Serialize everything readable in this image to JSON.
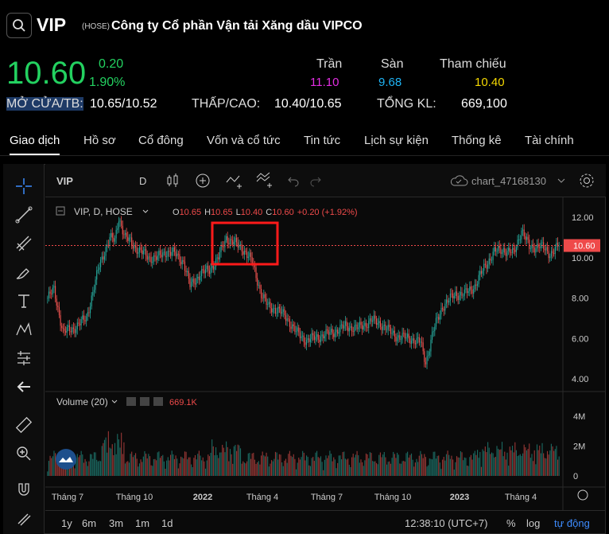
{
  "header": {
    "ticker": "VIP",
    "exchange": "(HOSE)",
    "company": "Công ty Cổ phần Vận tải Xăng dầu VIPCO",
    "price": "10.60",
    "change": "0.20",
    "change_pct": "1.90%",
    "ceiling_label": "Trần",
    "ceiling": "11.10",
    "floor_label": "Sàn",
    "floor": "9.68",
    "ref_label": "Tham chiếu",
    "ref": "10.40",
    "open_avg_label": "MỞ CỬA/TB:",
    "open_avg": "10.65/10.52",
    "low_high_label": "THẤP/CAO:",
    "low_high": "10.40/10.65",
    "volume_label": "TỔNG KL:",
    "volume": "669,100",
    "colors": {
      "up": "#23d160",
      "ceiling": "#e22ee2",
      "floor": "#1fb4f5",
      "ref": "#f5d800"
    }
  },
  "tabs": [
    {
      "label": "Giao dịch"
    },
    {
      "label": "Hồ sơ"
    },
    {
      "label": "Cổ đông"
    },
    {
      "label": "Vốn và cổ tức"
    },
    {
      "label": "Tin tức"
    },
    {
      "label": "Lịch sự kiện"
    },
    {
      "label": "Thống kê"
    },
    {
      "label": "Tài chính"
    }
  ],
  "chart_toolbar": {
    "symbol": "VIP",
    "interval": "D",
    "chart_name": "chart_47168130"
  },
  "legend": {
    "title": "VIP, D, HOSE",
    "o_label": "O",
    "o": "10.65",
    "h_label": "H",
    "h": "10.65",
    "l_label": "L",
    "l": "10.40",
    "c_label": "C",
    "c": "10.60",
    "change": "+0.20 (+1.92%)",
    "volume_title": "Volume (20)",
    "volume_value": "669.1K",
    "last_price_tag": "10.60"
  },
  "chart_data": {
    "type": "candlestick",
    "price_ticks": [
      "12.00",
      "10.00",
      "8.00",
      "6.00",
      "4.00"
    ],
    "price_tick_values": [
      12,
      10,
      8,
      6,
      4
    ],
    "volume_ticks": [
      "4M",
      "2M",
      "0"
    ],
    "volume_tick_values": [
      4,
      2,
      0
    ],
    "x_labels": [
      "Tháng 7",
      "Tháng 10",
      "2022",
      "Tháng 4",
      "Tháng 7",
      "Tháng 10",
      "2023",
      "Tháng 4"
    ],
    "last_price": 10.6,
    "price_path_keypoints": [
      [
        0,
        8.0
      ],
      [
        5,
        8.4
      ],
      [
        12,
        6.3
      ],
      [
        20,
        6.5
      ],
      [
        30,
        7.0
      ],
      [
        40,
        9.6
      ],
      [
        48,
        11.0
      ],
      [
        52,
        10.8
      ],
      [
        55,
        12.0
      ],
      [
        60,
        11.0
      ],
      [
        70,
        10.4
      ],
      [
        78,
        10.0
      ],
      [
        85,
        10.0
      ],
      [
        92,
        10.3
      ],
      [
        98,
        10.2
      ],
      [
        105,
        9.8
      ],
      [
        110,
        8.6
      ],
      [
        118,
        9.2
      ],
      [
        125,
        9.4
      ],
      [
        132,
        10.0
      ],
      [
        138,
        11.0
      ],
      [
        142,
        10.8
      ],
      [
        150,
        10.5
      ],
      [
        158,
        9.8
      ],
      [
        165,
        8.2
      ],
      [
        170,
        7.6
      ],
      [
        178,
        7.4
      ],
      [
        185,
        7.0
      ],
      [
        192,
        6.3
      ],
      [
        200,
        5.9
      ],
      [
        210,
        6.1
      ],
      [
        220,
        6.3
      ],
      [
        230,
        6.6
      ],
      [
        240,
        6.5
      ],
      [
        250,
        6.9
      ],
      [
        258,
        6.7
      ],
      [
        265,
        6.3
      ],
      [
        270,
        6.1
      ],
      [
        280,
        6.0
      ],
      [
        288,
        5.8
      ],
      [
        292,
        4.8
      ],
      [
        298,
        6.4
      ],
      [
        305,
        7.6
      ],
      [
        315,
        8.2
      ],
      [
        322,
        8.2
      ],
      [
        330,
        8.6
      ],
      [
        338,
        9.6
      ],
      [
        345,
        10.3
      ],
      [
        352,
        10.4
      ],
      [
        360,
        10.2
      ],
      [
        366,
        11.4
      ],
      [
        372,
        10.5
      ],
      [
        380,
        10.6
      ],
      [
        388,
        10.2
      ],
      [
        395,
        10.6
      ]
    ],
    "highlight_box": true
  },
  "bottom": {
    "ranges": [
      "1y",
      "6m",
      "3m",
      "1m",
      "1d"
    ],
    "time": "12:38:10 (UTC+7)",
    "pct": "%",
    "log": "log",
    "auto": "tự động"
  }
}
